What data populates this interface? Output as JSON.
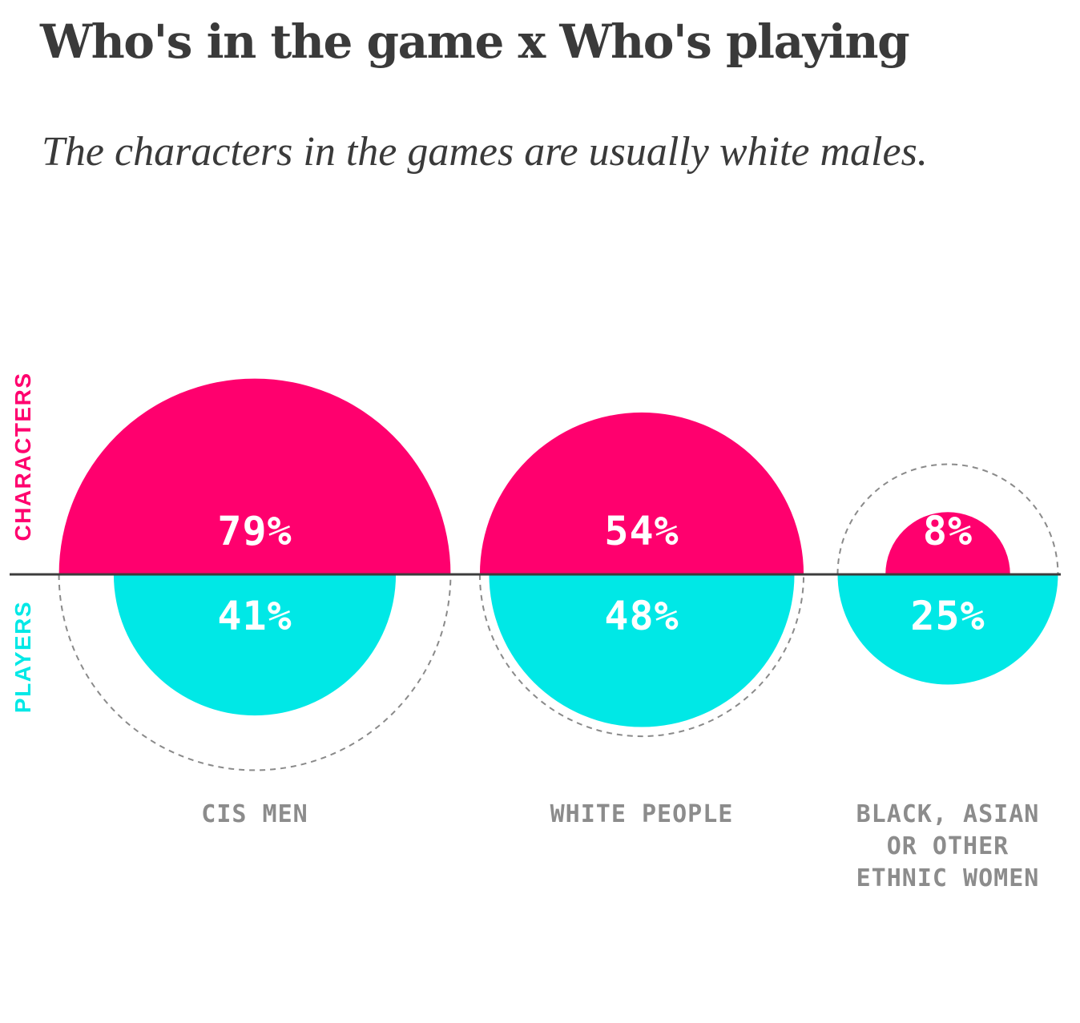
{
  "title": "Who's in the game x Who's playing",
  "subtitle": "The characters in the games are usually white males.",
  "colors": {
    "characters": "#ff006e",
    "players": "#00e8e6",
    "axis": "#3c3c3c",
    "outline": "#8a8a8a",
    "category_text": "#8c8c8c",
    "value_text": "#ffffff"
  },
  "chart_data": {
    "type": "semicircle-comparison",
    "side_labels": {
      "top": "CHARACTERS",
      "bottom": "PLAYERS"
    },
    "series": [
      {
        "name": "CHARACTERS",
        "values": [
          79,
          54,
          8
        ]
      },
      {
        "name": "PLAYERS",
        "values": [
          41,
          48,
          25
        ]
      }
    ],
    "categories": [
      {
        "label_lines": [
          "CIS MEN"
        ],
        "characters": 79,
        "players": 41,
        "characters_label": "79%",
        "players_label": "41%"
      },
      {
        "label_lines": [
          "WHITE PEOPLE"
        ],
        "characters": 54,
        "players": 48,
        "characters_label": "54%",
        "players_label": "48%"
      },
      {
        "label_lines": [
          "BLACK, ASIAN",
          "OR OTHER",
          "ETHNIC WOMEN"
        ],
        "characters": 8,
        "players": 25,
        "characters_label": "8%",
        "players_label": "25%"
      }
    ],
    "encoding": "semicircle area proportional to value",
    "dashed_outline": "larger value outlined on the opposite side"
  }
}
